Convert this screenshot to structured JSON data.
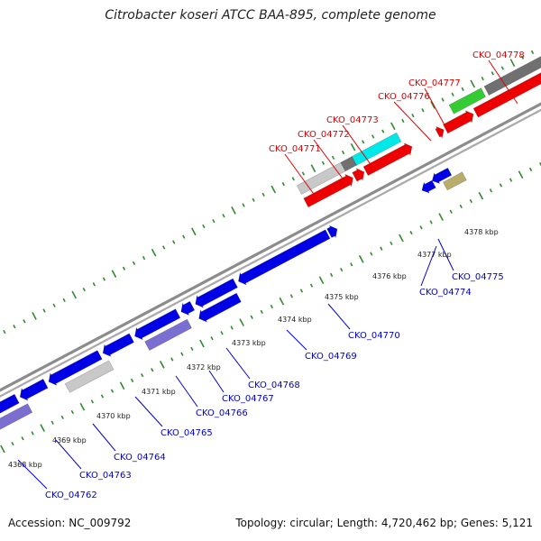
{
  "title": "Citrobacter koseri ATCC BAA-895, complete genome",
  "footer": {
    "accession": "Accession: NC_009792",
    "topology": "Topology: circular; Length: 4,720,462 bp; Genes: 5,121"
  },
  "colors": {
    "backbone": "#8c8c8c",
    "tick": "#2e8b2e",
    "cds": "#0000e6",
    "cds_forward": "#ee0000",
    "label_forward": "#dd0000",
    "label_reverse": "#0000cc",
    "rna_light": "#c8c8c8",
    "rna_dark": "#707070",
    "cyan": "#00e8e8",
    "green": "#33cc33",
    "purple": "#7a6fd0",
    "olive": "#b8ad6c"
  },
  "scale_labels": [
    "4368 kbp",
    "4369 kbp",
    "4370 kbp",
    "4371 kbp",
    "4372 kbp",
    "4373 kbp",
    "4374 kbp",
    "4375 kbp",
    "4376 kbp",
    "4377 kbp",
    "4378 kbp"
  ],
  "forward_labels": [
    "CKO_04771",
    "CKO_04772",
    "CKO_04773",
    "CKO_04776",
    "CKO_04777",
    "CKO_04778"
  ],
  "reverse_labels": [
    "CKO_04762",
    "CKO_04763",
    "CKO_04764",
    "CKO_04765",
    "CKO_04766",
    "CKO_04767",
    "CKO_04768",
    "CKO_04769",
    "CKO_04770",
    "CKO_04774",
    "CKO_04775"
  ]
}
